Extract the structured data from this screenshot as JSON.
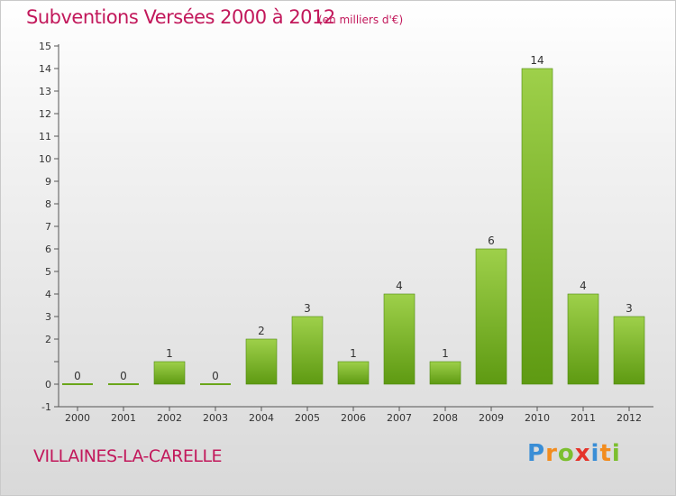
{
  "header": {
    "title": "Subventions Versées 2000 à 2012",
    "unit": "(en milliers d'€)"
  },
  "commune": "VILLAINES-LA-CARELLE",
  "logo": {
    "text": "Proxiti",
    "letters": [
      {
        "ch": "P",
        "color": "#3a8ed6"
      },
      {
        "ch": "r",
        "color": "#f28c1e"
      },
      {
        "ch": "o",
        "color": "#7cbf2f"
      },
      {
        "ch": "x",
        "color": "#e5332a"
      },
      {
        "ch": "i",
        "color": "#3a8ed6"
      },
      {
        "ch": "t",
        "color": "#f28c1e"
      },
      {
        "ch": "i",
        "color": "#7cbf2f"
      }
    ]
  },
  "colors": {
    "accent": "#c2185b",
    "bar_top": "#9ed04a",
    "bar_bottom": "#5e9a12",
    "axis": "#555555"
  },
  "chart_data": {
    "type": "bar",
    "title": "Subventions Versées 2000 à 2012",
    "subtitle": "(en milliers d'€)",
    "categories": [
      "2000",
      "2001",
      "2002",
      "2003",
      "2004",
      "2005",
      "2006",
      "2007",
      "2008",
      "2009",
      "2010",
      "2011",
      "2012"
    ],
    "values": [
      0,
      0,
      1,
      0,
      2,
      3,
      1,
      4,
      1,
      6,
      14,
      4,
      3
    ],
    "data_labels": [
      "0",
      "0",
      "1",
      "0",
      "2",
      "3",
      "1",
      "4",
      "1",
      "6",
      "14",
      "4",
      "3"
    ],
    "xlabel": "",
    "ylabel": "",
    "ylim": [
      -1,
      15
    ],
    "yticks": [
      -1,
      0,
      1,
      2,
      3,
      4,
      5,
      6,
      7,
      8,
      9,
      10,
      11,
      12,
      13,
      14,
      15
    ],
    "ytick_labels": [
      "-1",
      "0",
      "",
      "2",
      "3",
      "4",
      "5",
      "6",
      "7",
      "8",
      "9",
      "10",
      "11",
      "12",
      "13",
      "14",
      "15"
    ],
    "grid": false,
    "legend": "none"
  }
}
